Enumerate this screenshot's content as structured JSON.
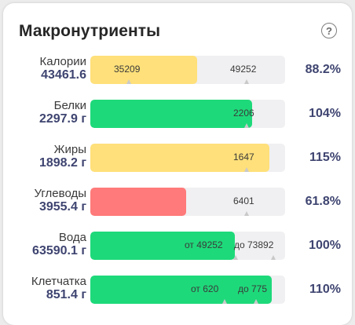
{
  "title": "Макронутриенты",
  "help_icon": "?",
  "colors": {
    "green": "#1ed97a",
    "yellow": "#ffe07a",
    "red": "#ff7a7a",
    "track": "#f0f0f2"
  },
  "rows": [
    {
      "name": "Калории",
      "value": "43461.6",
      "left_label": "35209",
      "right_label": "49252",
      "percent": "88.2%",
      "fill_ratio": 0.55,
      "color": "yellow"
    },
    {
      "name": "Белки",
      "value": "2297.9 г",
      "left_label": "",
      "right_label": "2206",
      "percent": "104%",
      "fill_ratio": 0.83,
      "color": "green"
    },
    {
      "name": "Жиры",
      "value": "1898.2 г",
      "left_label": "",
      "right_label": "1647",
      "percent": "115%",
      "fill_ratio": 0.92,
      "color": "yellow"
    },
    {
      "name": "Углеводы",
      "value": "3955.4 г",
      "left_label": "",
      "right_label": "6401",
      "percent": "61.8%",
      "fill_ratio": 0.49,
      "color": "red"
    },
    {
      "name": "Вода",
      "value": "63590.1 г",
      "left_label": "от 49252",
      "right_label": "до 73892",
      "percent": "100%",
      "fill_ratio": 0.74,
      "color": "green"
    },
    {
      "name": "Клетчатка",
      "value": "851.4 г",
      "left_label": "от 620",
      "right_label": "до 775",
      "percent": "110%",
      "fill_ratio": 0.93,
      "color": "green"
    }
  ]
}
